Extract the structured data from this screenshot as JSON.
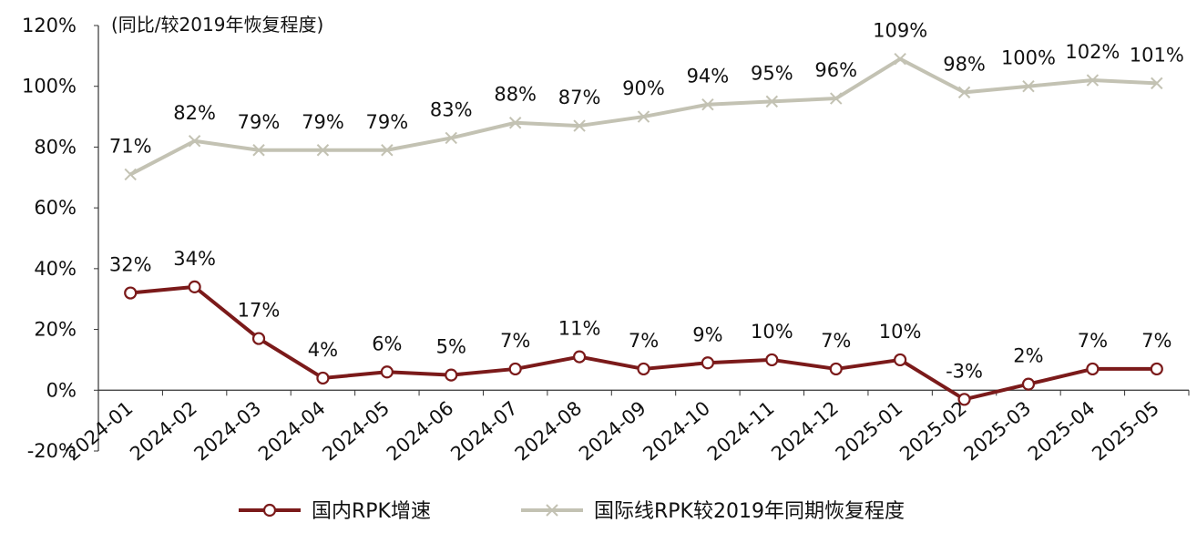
{
  "chart_data": {
    "type": "line",
    "unit_label": "(同比/较2019年恢复程度)",
    "categories": [
      "2024-01",
      "2024-02",
      "2024-03",
      "2024-04",
      "2024-05",
      "2024-06",
      "2024-07",
      "2024-08",
      "2024-09",
      "2024-10",
      "2024-11",
      "2024-12",
      "2025-01",
      "2025-02",
      "2025-03",
      "2025-04",
      "2025-05"
    ],
    "ylim": [
      -20,
      120
    ],
    "yticks": [
      "-20%",
      "0%",
      "20%",
      "40%",
      "60%",
      "80%",
      "100%",
      "120%"
    ],
    "grid": false,
    "legend_position": "bottom",
    "series": [
      {
        "name": "国内RPK增速",
        "color": "#7b1a1a",
        "marker": "circle",
        "values": [
          32,
          34,
          17,
          4,
          6,
          5,
          7,
          11,
          7,
          9,
          10,
          7,
          10,
          -3,
          2,
          7,
          7
        ],
        "labels": [
          "32%",
          "34%",
          "17%",
          "4%",
          "6%",
          "5%",
          "7%",
          "11%",
          "7%",
          "9%",
          "10%",
          "7%",
          "10%",
          "-3%",
          "2%",
          "7%",
          "7%"
        ]
      },
      {
        "name": "国际线RPK较2019年同期恢复程度",
        "color": "#c3c2b3",
        "marker": "x",
        "values": [
          71,
          82,
          79,
          79,
          79,
          83,
          88,
          87,
          90,
          94,
          95,
          96,
          109,
          98,
          100,
          102,
          101
        ],
        "labels": [
          "71%",
          "82%",
          "79%",
          "79%",
          "79%",
          "83%",
          "88%",
          "87%",
          "90%",
          "94%",
          "95%",
          "96%",
          "109%",
          "98%",
          "100%",
          "102%",
          "101%"
        ]
      }
    ]
  }
}
